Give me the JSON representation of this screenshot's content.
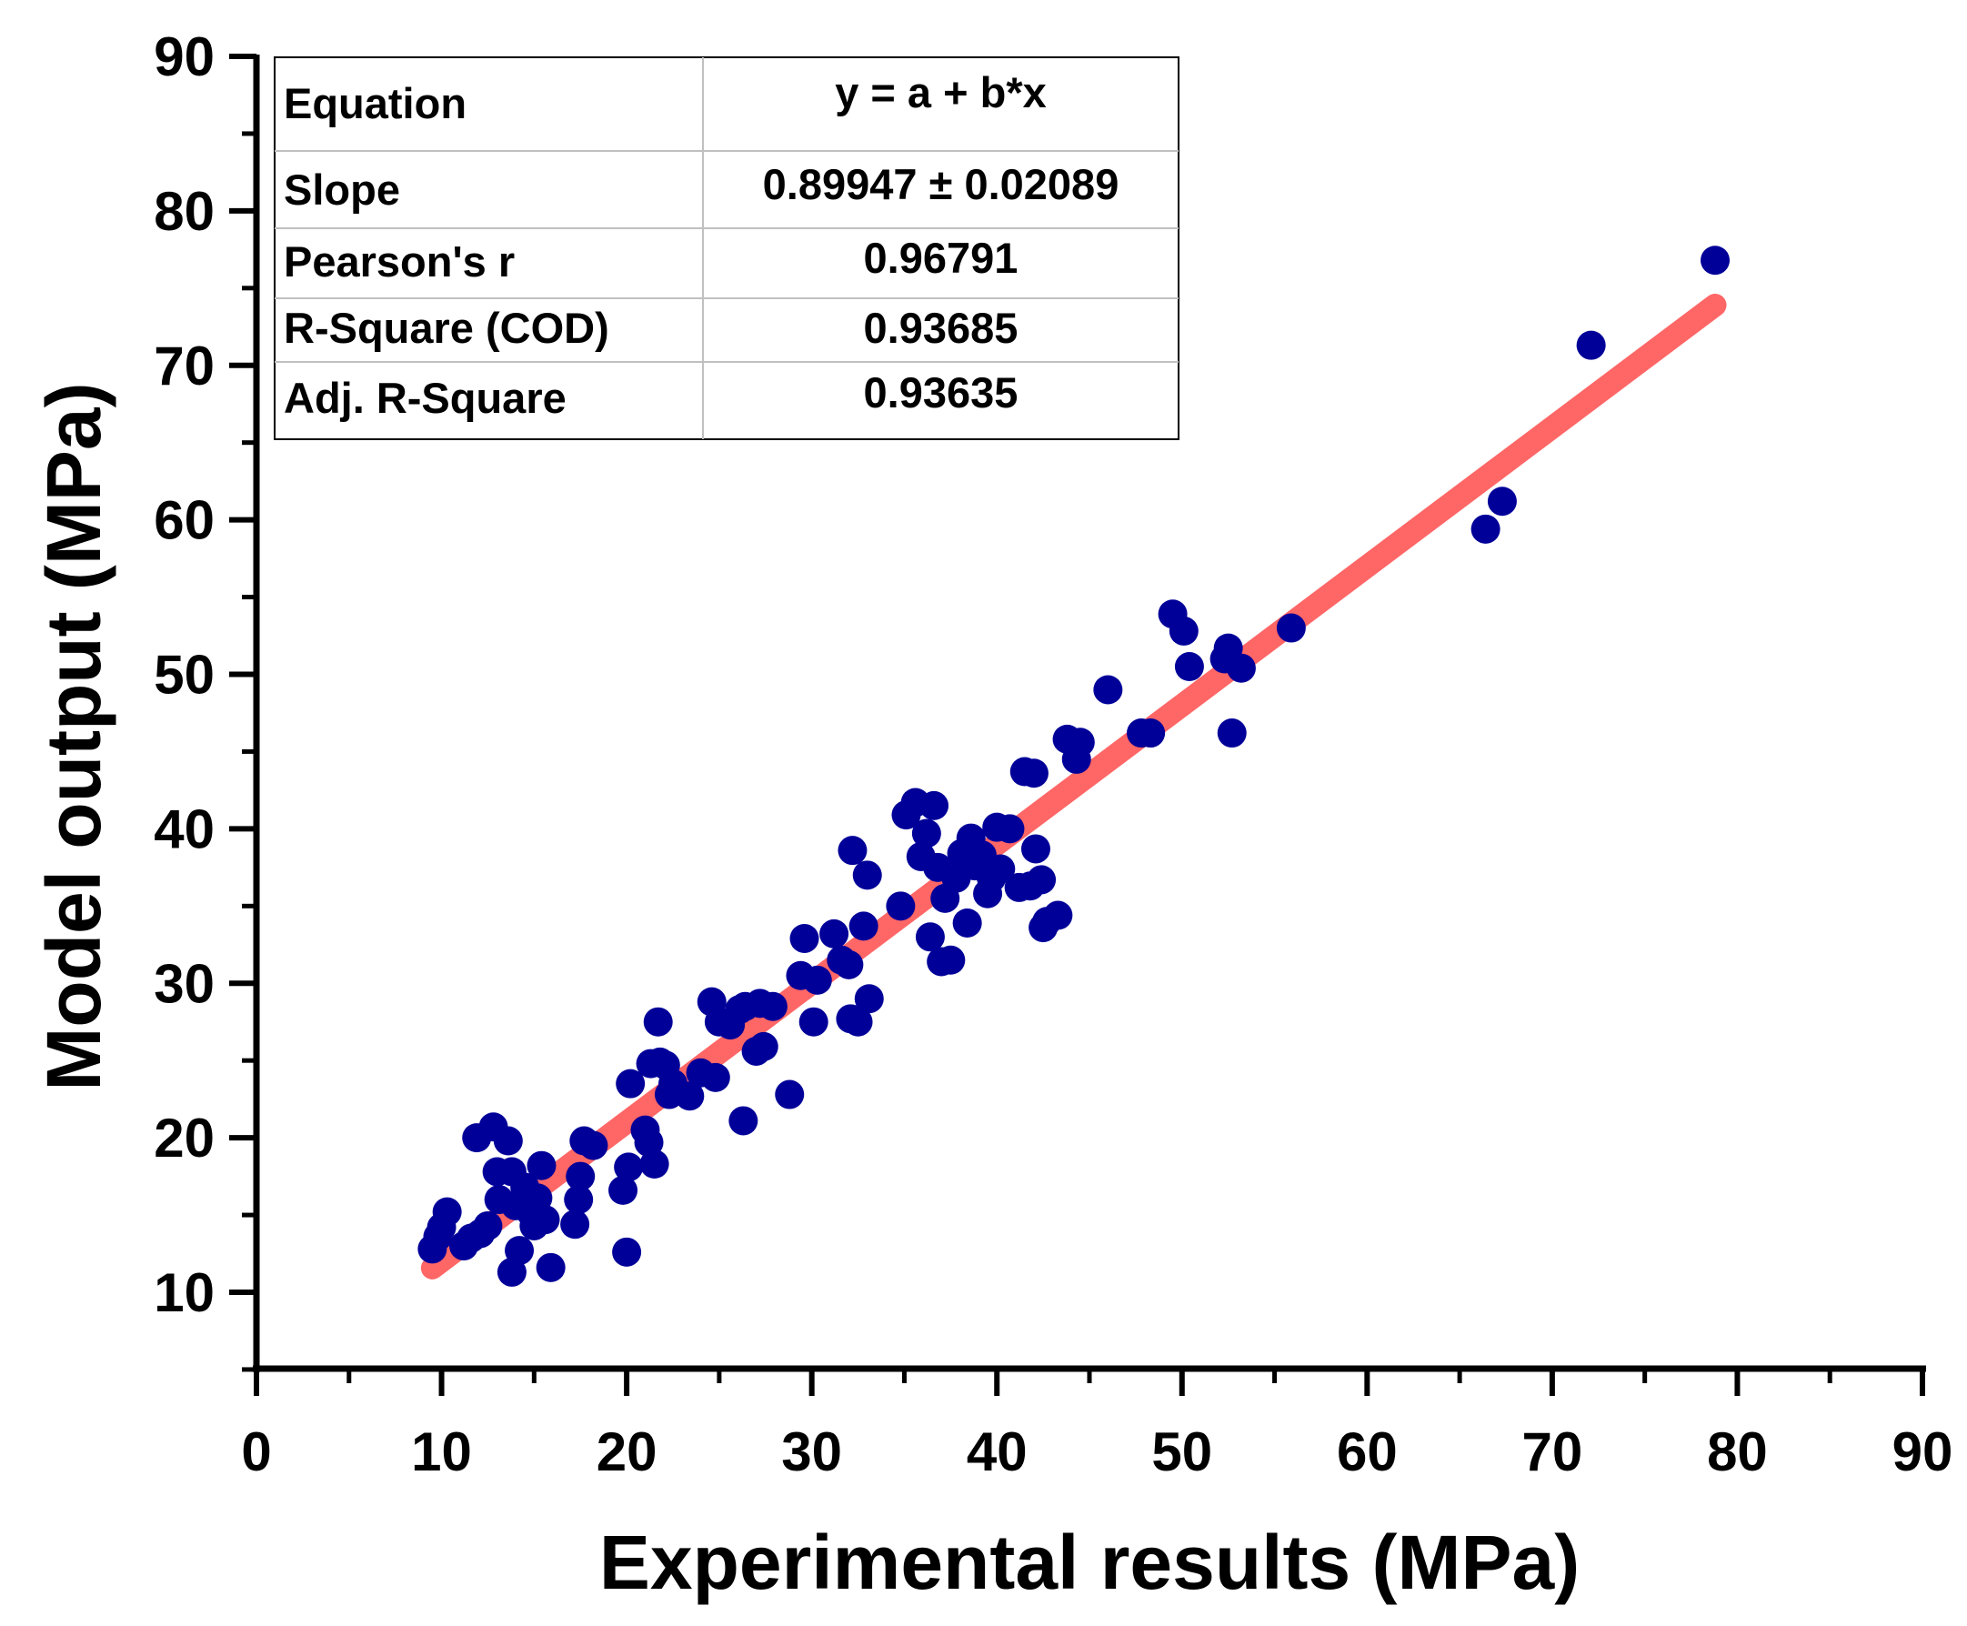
{
  "chart_data": {
    "type": "scatter",
    "xlabel": "Experimental results (MPa)",
    "ylabel": "Model output (MPa)",
    "xlim": [
      0,
      90
    ],
    "ylim": [
      0,
      90
    ],
    "y_axis_min_visible": 5,
    "x_ticks": [
      0,
      10,
      20,
      30,
      40,
      50,
      60,
      70,
      80,
      90
    ],
    "y_ticks": [
      10,
      20,
      30,
      40,
      50,
      60,
      70,
      80,
      90
    ],
    "grid": false,
    "colors": {
      "points": "#000099",
      "fit_line": "#ff6666",
      "axes": "#000000"
    },
    "fit_line": {
      "intercept": 3.02,
      "slope": 0.89947,
      "x_start": 9.5,
      "x_end": 78.8
    },
    "stats_table": [
      {
        "label": "Equation",
        "value": "y = a + b*x"
      },
      {
        "label": "Slope",
        "value": "0.89947 ± 0.02089"
      },
      {
        "label": "Pearson's r",
        "value": "0.96791"
      },
      {
        "label": "R-Square (COD)",
        "value": "0.93685"
      },
      {
        "label": "Adj. R-Square",
        "value": "0.93635"
      }
    ],
    "points": [
      [
        9.5,
        12.8
      ],
      [
        9.8,
        13.6
      ],
      [
        10.0,
        14.2
      ],
      [
        10.3,
        15.2
      ],
      [
        11.2,
        13.0
      ],
      [
        11.6,
        13.5
      ],
      [
        11.9,
        20.0
      ],
      [
        12.1,
        13.8
      ],
      [
        12.5,
        14.3
      ],
      [
        12.8,
        20.7
      ],
      [
        13.0,
        17.8
      ],
      [
        13.1,
        16.0
      ],
      [
        13.6,
        19.8
      ],
      [
        13.8,
        11.3
      ],
      [
        13.8,
        17.8
      ],
      [
        14.0,
        15.6
      ],
      [
        14.2,
        12.7
      ],
      [
        14.5,
        16.8
      ],
      [
        14.8,
        15.2
      ],
      [
        15.0,
        14.3
      ],
      [
        15.2,
        16.1
      ],
      [
        15.4,
        18.2
      ],
      [
        15.6,
        14.7
      ],
      [
        15.9,
        11.6
      ],
      [
        17.2,
        14.4
      ],
      [
        17.4,
        16.0
      ],
      [
        17.5,
        17.5
      ],
      [
        17.7,
        19.8
      ],
      [
        18.2,
        19.5
      ],
      [
        19.8,
        16.6
      ],
      [
        20.0,
        12.6
      ],
      [
        20.1,
        18.1
      ],
      [
        20.2,
        23.5
      ],
      [
        21.0,
        20.5
      ],
      [
        21.2,
        19.7
      ],
      [
        21.3,
        24.8
      ],
      [
        21.5,
        18.3
      ],
      [
        21.7,
        27.5
      ],
      [
        21.8,
        24.9
      ],
      [
        22.1,
        24.7
      ],
      [
        22.3,
        22.8
      ],
      [
        22.5,
        23.5
      ],
      [
        23.4,
        22.7
      ],
      [
        24.0,
        24.2
      ],
      [
        24.6,
        28.8
      ],
      [
        24.8,
        23.9
      ],
      [
        25.0,
        27.5
      ],
      [
        25.6,
        27.3
      ],
      [
        26.1,
        28.3
      ],
      [
        26.3,
        21.1
      ],
      [
        26.4,
        28.5
      ],
      [
        27.0,
        25.6
      ],
      [
        27.2,
        28.7
      ],
      [
        27.4,
        25.9
      ],
      [
        27.9,
        28.5
      ],
      [
        28.8,
        22.8
      ],
      [
        29.4,
        30.5
      ],
      [
        29.6,
        32.9
      ],
      [
        30.1,
        27.5
      ],
      [
        30.3,
        30.2
      ],
      [
        31.2,
        33.2
      ],
      [
        31.6,
        31.5
      ],
      [
        32.0,
        31.2
      ],
      [
        32.1,
        27.7
      ],
      [
        32.2,
        38.6
      ],
      [
        32.5,
        27.5
      ],
      [
        32.8,
        33.7
      ],
      [
        33.0,
        37.0
      ],
      [
        33.1,
        29.0
      ],
      [
        34.8,
        35.0
      ],
      [
        35.1,
        40.9
      ],
      [
        35.6,
        41.7
      ],
      [
        35.9,
        38.2
      ],
      [
        36.2,
        39.7
      ],
      [
        36.4,
        33.0
      ],
      [
        36.6,
        41.5
      ],
      [
        36.8,
        37.5
      ],
      [
        37.0,
        31.4
      ],
      [
        37.2,
        35.5
      ],
      [
        37.5,
        31.5
      ],
      [
        37.8,
        36.8
      ],
      [
        38.1,
        38.4
      ],
      [
        38.4,
        33.9
      ],
      [
        38.6,
        39.4
      ],
      [
        38.8,
        37.6
      ],
      [
        39.2,
        38.3
      ],
      [
        39.5,
        35.8
      ],
      [
        39.7,
        36.8
      ],
      [
        40.0,
        40.1
      ],
      [
        40.2,
        37.4
      ],
      [
        40.7,
        40.0
      ],
      [
        41.2,
        36.2
      ],
      [
        41.5,
        43.7
      ],
      [
        41.8,
        36.3
      ],
      [
        42.0,
        43.6
      ],
      [
        42.1,
        38.7
      ],
      [
        42.4,
        36.7
      ],
      [
        42.5,
        33.6
      ],
      [
        42.7,
        34.0
      ],
      [
        43.3,
        34.4
      ],
      [
        43.8,
        45.8
      ],
      [
        44.3,
        44.5
      ],
      [
        44.5,
        45.6
      ],
      [
        46.0,
        49.0
      ],
      [
        47.8,
        46.2
      ],
      [
        48.3,
        46.2
      ],
      [
        49.5,
        53.9
      ],
      [
        50.1,
        52.8
      ],
      [
        50.4,
        50.5
      ],
      [
        52.3,
        51.0
      ],
      [
        52.5,
        51.7
      ],
      [
        52.7,
        46.2
      ],
      [
        53.2,
        50.4
      ],
      [
        55.9,
        53.0
      ],
      [
        66.4,
        59.4
      ],
      [
        67.3,
        61.2
      ],
      [
        72.1,
        71.3
      ],
      [
        78.8,
        76.8
      ]
    ]
  }
}
